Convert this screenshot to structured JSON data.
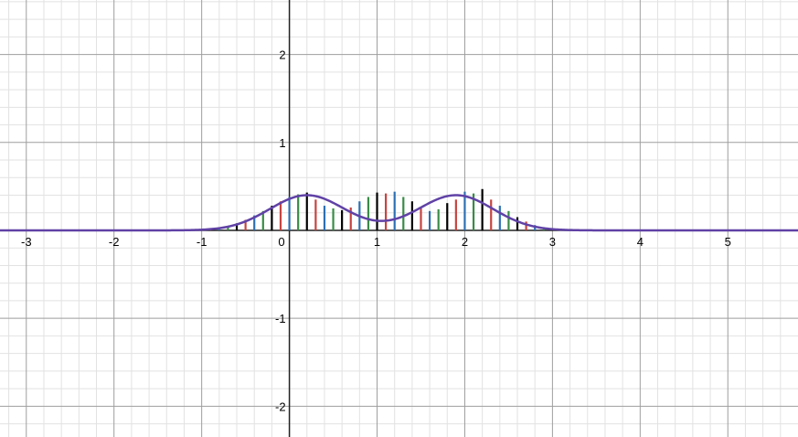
{
  "chart_data": {
    "type": "line",
    "grid": true,
    "minor_grid": true,
    "xlim": [
      -3.3,
      5.8
    ],
    "ylim": [
      -2.35,
      2.62
    ],
    "major_step": 1,
    "minor_step": 0.2,
    "x_ticks": [
      {
        "value": -3,
        "label": "-3"
      },
      {
        "value": -2,
        "label": "-2"
      },
      {
        "value": -1,
        "label": "-1"
      },
      {
        "value": 0,
        "label": "0"
      },
      {
        "value": 1,
        "label": "1"
      },
      {
        "value": 2,
        "label": "2"
      },
      {
        "value": 3,
        "label": "3"
      },
      {
        "value": 4,
        "label": "4"
      },
      {
        "value": 5,
        "label": "5"
      }
    ],
    "y_ticks": [
      {
        "value": 2,
        "label": "2"
      },
      {
        "value": 1,
        "label": "1"
      },
      {
        "value": -1,
        "label": "-1"
      },
      {
        "value": -2,
        "label": "-2"
      }
    ],
    "bars": {
      "colors": [
        "#c74440",
        "#2d70b3",
        "#388c46",
        "#000000"
      ],
      "points": [
        {
          "x": -0.9,
          "y": 0.02
        },
        {
          "x": -0.8,
          "y": 0.03
        },
        {
          "x": -0.7,
          "y": 0.05
        },
        {
          "x": -0.6,
          "y": 0.08
        },
        {
          "x": -0.5,
          "y": 0.12
        },
        {
          "x": -0.4,
          "y": 0.17
        },
        {
          "x": -0.3,
          "y": 0.22
        },
        {
          "x": -0.2,
          "y": 0.28
        },
        {
          "x": -0.1,
          "y": 0.33
        },
        {
          "x": 0.0,
          "y": 0.38
        },
        {
          "x": 0.1,
          "y": 0.41
        },
        {
          "x": 0.2,
          "y": 0.43
        },
        {
          "x": 0.3,
          "y": 0.35
        },
        {
          "x": 0.4,
          "y": 0.28
        },
        {
          "x": 0.5,
          "y": 0.25
        },
        {
          "x": 0.6,
          "y": 0.23
        },
        {
          "x": 0.7,
          "y": 0.26
        },
        {
          "x": 0.8,
          "y": 0.33
        },
        {
          "x": 0.9,
          "y": 0.38
        },
        {
          "x": 1.0,
          "y": 0.43
        },
        {
          "x": 1.1,
          "y": 0.42
        },
        {
          "x": 1.2,
          "y": 0.44
        },
        {
          "x": 1.3,
          "y": 0.38
        },
        {
          "x": 1.4,
          "y": 0.33
        },
        {
          "x": 1.5,
          "y": 0.26
        },
        {
          "x": 1.6,
          "y": 0.22
        },
        {
          "x": 1.7,
          "y": 0.24
        },
        {
          "x": 1.8,
          "y": 0.31
        },
        {
          "x": 1.9,
          "y": 0.35
        },
        {
          "x": 2.0,
          "y": 0.44
        },
        {
          "x": 2.1,
          "y": 0.42
        },
        {
          "x": 2.2,
          "y": 0.47
        },
        {
          "x": 2.3,
          "y": 0.35
        },
        {
          "x": 2.4,
          "y": 0.28
        },
        {
          "x": 2.5,
          "y": 0.22
        },
        {
          "x": 2.6,
          "y": 0.15
        },
        {
          "x": 2.7,
          "y": 0.1
        },
        {
          "x": 2.8,
          "y": 0.06
        },
        {
          "x": 2.9,
          "y": 0.03
        },
        {
          "x": 3.0,
          "y": 0.01
        }
      ]
    },
    "curve": {
      "color": "#6042a6",
      "sampled_range": [
        -3.3,
        5.8
      ],
      "peaks": [
        {
          "center": 0.2,
          "height": 0.4,
          "width": 0.6
        },
        {
          "center": 1.9,
          "height": 0.4,
          "width": 0.6
        }
      ]
    }
  }
}
